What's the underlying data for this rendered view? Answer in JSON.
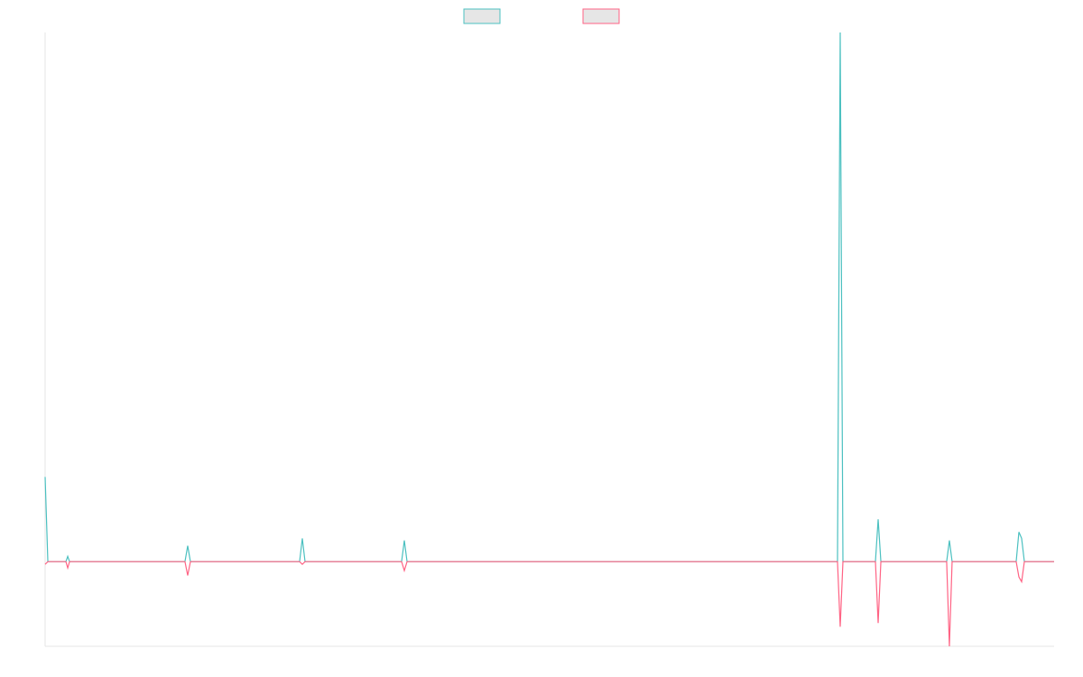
{
  "chart_data": {
    "type": "line",
    "x": [
      0,
      0.27,
      2.06,
      2.24,
      2.42,
      13.86,
      14.13,
      14.4,
      25.22,
      25.49,
      25.76,
      35.33,
      35.6,
      35.87,
      78.53,
      78.8,
      79.07,
      82.29,
      82.56,
      82.83,
      89.35,
      89.62,
      89.89,
      96.24,
      96.51,
      96.78,
      97.05,
      100
    ],
    "xlim": [
      0,
      100
    ],
    "ylim": [
      -16,
      100
    ],
    "legend": "top",
    "series": [
      {
        "color": "#4bc0c0",
        "values": [
          16,
          0,
          0,
          1,
          0,
          0,
          3,
          0,
          0,
          4.4,
          0,
          0,
          4,
          0,
          0,
          100,
          0,
          0,
          8,
          0,
          0,
          4,
          0,
          0,
          5.6,
          4.4,
          0,
          0
        ]
      },
      {
        "color": "#ff6384",
        "values": [
          -0.5,
          0,
          0,
          -1.2,
          0,
          0,
          -2.6,
          0,
          0,
          -0.5,
          0,
          0,
          -1.7,
          0,
          0,
          -12.3,
          0,
          0,
          -11.6,
          0,
          0,
          -16,
          0,
          0,
          -2.9,
          -3.8,
          0,
          0
        ]
      }
    ]
  }
}
